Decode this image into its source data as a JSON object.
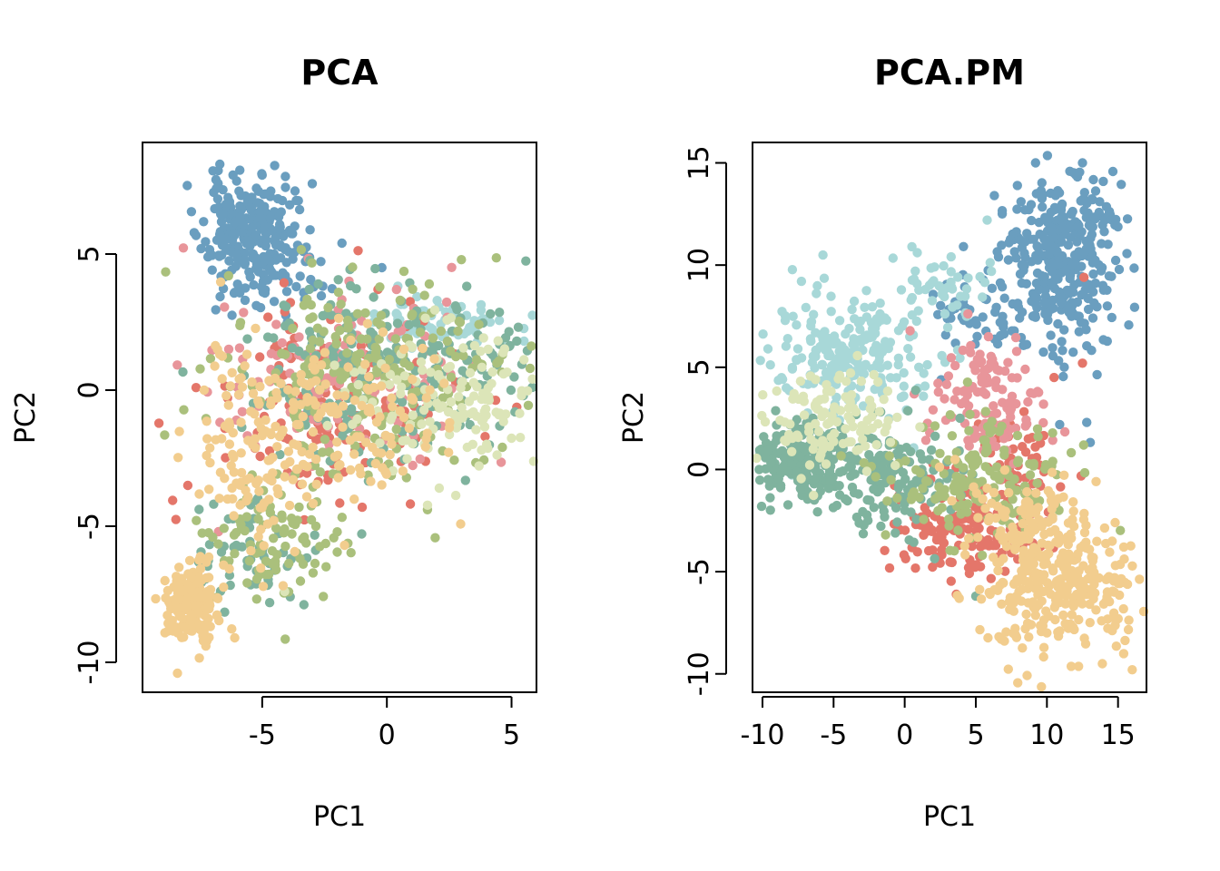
{
  "chart_data": [
    {
      "type": "scatter",
      "title": "PCA",
      "xlabel": "PC1",
      "ylabel": "PC2",
      "xlim": [
        -9.8,
        6.0
      ],
      "ylim": [
        -11.1,
        9.1
      ],
      "xticks": [
        -5,
        0,
        5
      ],
      "yticks": [
        -10,
        -5,
        0,
        5
      ],
      "xtick_labels": [
        "-5",
        "0",
        "5"
      ],
      "ytick_labels": [
        "-10",
        "-5",
        "0",
        "5"
      ],
      "grid": false,
      "series": [
        {
          "color": "#6a9ebf",
          "clusters": [
            {
              "cx": -5.6,
              "cy": 5.8,
              "sx": 0.9,
              "sy": 1.0,
              "n": 240,
              "seed": 11
            },
            {
              "cx": -4.5,
              "cy": 4.2,
              "sx": 1.0,
              "sy": 0.7,
              "n": 50,
              "seed": 12
            }
          ],
          "values": [
            [
              -6.7,
              8.3
            ],
            [
              -5.0,
              7.9
            ],
            [
              -1.8,
              5.4
            ],
            [
              -0.2,
              4.5
            ]
          ]
        },
        {
          "color": "#a8d8d8",
          "clusters": [
            {
              "cx": 2.0,
              "cy": 2.5,
              "sx": 1.5,
              "sy": 0.5,
              "n": 70,
              "seed": 21
            }
          ],
          "values": [
            [
              5.5,
              1.8
            ]
          ]
        },
        {
          "color": "#e4766a",
          "clusters": [
            {
              "cx": -2.0,
              "cy": -0.5,
              "sx": 2.5,
              "sy": 1.8,
              "n": 160,
              "seed": 31
            }
          ],
          "values": []
        },
        {
          "color": "#e8959a",
          "clusters": [
            {
              "cx": -1.5,
              "cy": 0.5,
              "sx": 2.6,
              "sy": 1.7,
              "n": 140,
              "seed": 41
            }
          ],
          "values": []
        },
        {
          "color": "#7fb39e",
          "clusters": [
            {
              "cx": 0.0,
              "cy": 0.5,
              "sx": 3.0,
              "sy": 1.6,
              "n": 230,
              "seed": 51
            },
            {
              "cx": -5.0,
              "cy": -6.0,
              "sx": 1.2,
              "sy": 1.1,
              "n": 60,
              "seed": 52
            }
          ],
          "values": []
        },
        {
          "color": "#aac07c",
          "clusters": [
            {
              "cx": -1.0,
              "cy": 0.5,
              "sx": 3.0,
              "sy": 1.9,
              "n": 220,
              "seed": 61
            },
            {
              "cx": -4.5,
              "cy": -5.5,
              "sx": 1.5,
              "sy": 1.2,
              "n": 90,
              "seed": 62
            }
          ],
          "values": [
            [
              1.7,
              3.9
            ]
          ]
        },
        {
          "color": "#dce5b8",
          "clusters": [
            {
              "cx": 2.5,
              "cy": -0.3,
              "sx": 2.2,
              "sy": 1.3,
              "n": 140,
              "seed": 71
            }
          ],
          "values": [
            [
              5.4,
              -0.2
            ],
            [
              -4.1,
              -7.4
            ],
            [
              2.1,
              -3.6
            ]
          ]
        },
        {
          "color": "#f2cd8e",
          "clusters": [
            {
              "cx": -7.8,
              "cy": -7.8,
              "sx": 0.5,
              "sy": 0.7,
              "n": 170,
              "seed": 81
            },
            {
              "cx": -5.5,
              "cy": -2.5,
              "sx": 1.3,
              "sy": 2.5,
              "n": 120,
              "seed": 82
            },
            {
              "cx": -2.0,
              "cy": -1.0,
              "sx": 2.2,
              "sy": 1.6,
              "n": 130,
              "seed": 83
            }
          ],
          "values": [
            [
              -8.4,
              -10.4
            ],
            [
              -8.9,
              -7.0
            ],
            [
              -1.7,
              -5.7
            ],
            [
              -6.1,
              -9.1
            ]
          ]
        }
      ]
    },
    {
      "type": "scatter",
      "title": "PCA.PM",
      "xlabel": "PC1",
      "ylabel": "PC2",
      "xlim": [
        -10.7,
        17.0
      ],
      "ylim": [
        -10.9,
        16.0
      ],
      "xticks": [
        -10,
        -5,
        0,
        5,
        10,
        15
      ],
      "yticks": [
        -10,
        -5,
        0,
        5,
        10,
        15
      ],
      "xtick_labels": [
        "-10",
        "-5",
        "0",
        "5",
        "10",
        "15"
      ],
      "ytick_labels": [
        "-10",
        "-5",
        "0",
        "5",
        "10",
        "15"
      ],
      "grid": false,
      "series": [
        {
          "color": "#6a9ebf",
          "clusters": [
            {
              "cx": 11.0,
              "cy": 10.5,
              "sx": 2.0,
              "sy": 2.2,
              "n": 330,
              "seed": 111
            },
            {
              "cx": 5.0,
              "cy": 8.0,
              "sx": 2.0,
              "sy": 1.2,
              "n": 50,
              "seed": 112
            }
          ],
          "values": [
            [
              9.2,
              15.0
            ],
            [
              12.5,
              15.0
            ],
            [
              6.3,
              13.4
            ],
            [
              12.8,
              2.3
            ],
            [
              10.9,
              2.2
            ]
          ]
        },
        {
          "color": "#a8d8d8",
          "clusters": [
            {
              "cx": -3.5,
              "cy": 5.8,
              "sx": 3.0,
              "sy": 1.6,
              "n": 230,
              "seed": 121
            },
            {
              "cx": 3.0,
              "cy": 9.0,
              "sx": 1.5,
              "sy": 1.0,
              "n": 40,
              "seed": 122
            }
          ],
          "values": [
            [
              5.8,
              12.2
            ]
          ]
        },
        {
          "color": "#e4766a",
          "clusters": [
            {
              "cx": 4.0,
              "cy": -2.8,
              "sx": 2.5,
              "sy": 1.2,
              "n": 160,
              "seed": 131
            },
            {
              "cx": 8.0,
              "cy": 0.5,
              "sx": 1.5,
              "sy": 1.2,
              "n": 50,
              "seed": 132
            }
          ],
          "values": [
            [
              12.6,
              9.4
            ],
            [
              12.5,
              5.2
            ],
            [
              10.5,
              4.5
            ]
          ]
        },
        {
          "color": "#e8959a",
          "clusters": [
            {
              "cx": 5.5,
              "cy": 3.5,
              "sx": 2.0,
              "sy": 1.5,
              "n": 130,
              "seed": 141
            }
          ],
          "values": []
        },
        {
          "color": "#7fb39e",
          "clusters": [
            {
              "cx": -7.0,
              "cy": 0.5,
              "sx": 1.8,
              "sy": 0.9,
              "n": 200,
              "seed": 151
            },
            {
              "cx": -1.0,
              "cy": -0.5,
              "sx": 3.0,
              "sy": 1.5,
              "n": 140,
              "seed": 152
            }
          ],
          "values": [
            [
              5.0,
              -6.2
            ]
          ]
        },
        {
          "color": "#aac07c",
          "clusters": [
            {
              "cx": 5.0,
              "cy": -0.5,
              "sx": 3.5,
              "sy": 1.5,
              "n": 160,
              "seed": 161
            }
          ],
          "values": []
        },
        {
          "color": "#dce5b8",
          "clusters": [
            {
              "cx": -5.0,
              "cy": 2.5,
              "sx": 2.5,
              "sy": 1.2,
              "n": 120,
              "seed": 171
            }
          ],
          "values": []
        },
        {
          "color": "#f2cd8e",
          "clusters": [
            {
              "cx": 11.0,
              "cy": -5.5,
              "sx": 2.8,
              "sy": 1.8,
              "n": 300,
              "seed": 181
            },
            {
              "cx": 8.0,
              "cy": -2.5,
              "sx": 2.0,
              "sy": 1.3,
              "n": 80,
              "seed": 182
            }
          ],
          "values": [
            [
              16.0,
              -9.8
            ],
            [
              13.9,
              -9.5
            ],
            [
              14.8,
              -2.6
            ]
          ]
        }
      ]
    }
  ]
}
